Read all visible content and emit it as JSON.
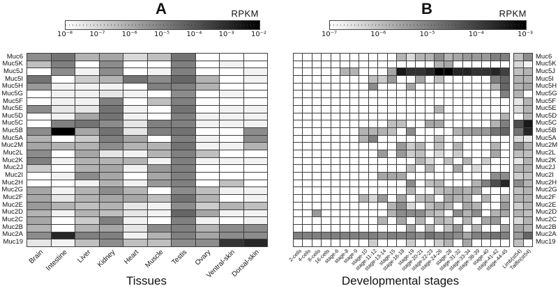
{
  "chart_data": [
    {
      "type": "heatmap",
      "title": "A",
      "unit": "RPKM",
      "xlabel": "Tissues",
      "colorbar_ticks": [
        "10⁻⁸",
        "10⁻⁷",
        "10⁻⁶",
        "10⁻⁵",
        "10⁻⁴",
        "10⁻³",
        "10⁻²"
      ],
      "scale_note": "grayscale darkness 0=white (≤10⁻⁸ RPKM) to 1=black (10⁻² RPKM), log scale",
      "rows": [
        "Muc6",
        "Muc5K",
        "Muc5J",
        "Muc5I",
        "Muc5H",
        "Muc5G",
        "Muc5F",
        "Muc5E",
        "Muc5D",
        "Muc5C",
        "Muc5B",
        "Muc5A",
        "Muc2M",
        "Muc2L",
        "Muc2K",
        "Muc2J",
        "Muc2I",
        "Muc2H",
        "Muc2G",
        "Muc2F",
        "Muc2E",
        "Muc2D",
        "Muc2C",
        "Muc2B",
        "Muc2A",
        "Muc19"
      ],
      "columns": [
        "Brain",
        "Intestine",
        "Liver",
        "Kidney",
        "Heart",
        "Muscle",
        "Testis",
        "Ovary",
        "Ventral-skin",
        "Dorsal-skin"
      ],
      "values": [
        [
          0.45,
          0.55,
          0.3,
          0.35,
          0.15,
          0.25,
          0.55,
          0.0,
          0.0,
          0.0
        ],
        [
          0.25,
          0.5,
          0.0,
          0.45,
          0.0,
          0.0,
          0.5,
          0.0,
          0.05,
          0.0
        ],
        [
          0.0,
          0.45,
          0.05,
          0.45,
          0.0,
          0.05,
          0.5,
          0.0,
          0.0,
          0.05
        ],
        [
          0.55,
          0.0,
          0.2,
          0.3,
          0.55,
          0.45,
          0.6,
          0.3,
          0.0,
          0.05
        ],
        [
          0.4,
          0.05,
          0.05,
          0.05,
          0.0,
          0.5,
          0.5,
          0.3,
          0.0,
          0.0
        ],
        [
          0.0,
          0.05,
          0.05,
          0.1,
          0.05,
          0.0,
          0.45,
          0.0,
          0.05,
          0.0
        ],
        [
          0.0,
          0.05,
          0.05,
          0.5,
          0.0,
          0.25,
          0.5,
          0.0,
          0.0,
          0.0
        ],
        [
          0.45,
          0.1,
          0.1,
          0.55,
          0.05,
          0.0,
          0.55,
          0.0,
          0.05,
          0.05
        ],
        [
          0.0,
          0.05,
          0.35,
          0.55,
          0.05,
          0.0,
          0.5,
          0.05,
          0.05,
          0.05
        ],
        [
          0.0,
          0.5,
          0.55,
          0.45,
          0.1,
          0.5,
          0.5,
          0.05,
          0.05,
          0.05
        ],
        [
          0.45,
          1.0,
          0.35,
          0.55,
          0.1,
          0.5,
          0.55,
          0.0,
          0.0,
          0.45
        ],
        [
          0.3,
          0.0,
          0.2,
          0.5,
          0.35,
          0.0,
          0.5,
          0.05,
          0.0,
          0.45
        ],
        [
          0.35,
          0.3,
          0.3,
          0.45,
          0.3,
          0.3,
          0.55,
          0.05,
          0.05,
          0.3
        ],
        [
          0.45,
          0.0,
          0.35,
          0.1,
          0.05,
          0.3,
          0.5,
          0.25,
          0.0,
          0.0
        ],
        [
          0.5,
          0.05,
          0.3,
          0.3,
          0.3,
          0.05,
          0.5,
          0.05,
          0.05,
          0.05
        ],
        [
          0.2,
          0.0,
          0.3,
          0.35,
          0.05,
          0.4,
          0.5,
          0.0,
          0.0,
          0.0
        ],
        [
          0.0,
          0.05,
          0.45,
          0.35,
          0.0,
          0.35,
          0.5,
          0.0,
          0.0,
          0.0
        ],
        [
          0.0,
          0.0,
          0.05,
          0.3,
          0.05,
          0.4,
          0.5,
          0.0,
          0.25,
          0.0
        ],
        [
          0.35,
          0.05,
          0.3,
          0.45,
          0.3,
          0.0,
          0.45,
          0.25,
          0.05,
          0.05
        ],
        [
          0.35,
          0.1,
          0.3,
          0.35,
          0.35,
          0.25,
          0.55,
          0.3,
          0.0,
          0.05
        ],
        [
          0.4,
          0.3,
          0.25,
          0.3,
          0.1,
          0.05,
          0.45,
          0.2,
          0.3,
          0.25
        ],
        [
          0.3,
          0.05,
          0.3,
          0.25,
          0.1,
          0.05,
          0.6,
          0.35,
          0.05,
          0.05
        ],
        [
          0.35,
          0.0,
          0.2,
          0.5,
          0.05,
          0.0,
          0.5,
          0.05,
          0.0,
          0.05
        ],
        [
          0.3,
          0.0,
          0.3,
          0.35,
          0.1,
          0.45,
          0.5,
          0.3,
          0.45,
          0.45
        ],
        [
          0.45,
          0.85,
          0.5,
          0.5,
          0.05,
          0.3,
          0.5,
          0.35,
          0.45,
          0.45
        ],
        [
          0.1,
          0.05,
          0.25,
          0.45,
          0.25,
          0.25,
          0.45,
          0.45,
          0.8,
          0.85
        ]
      ]
    },
    {
      "type": "heatmap",
      "title": "B",
      "unit": "RPKM",
      "xlabel": "Developmental stages",
      "colorbar_ticks": [
        "10⁻⁷",
        "10⁻⁶",
        "10⁻⁵",
        "10⁻⁴",
        "10⁻³"
      ],
      "scale_note": "grayscale darkness 0=white (≤10⁻⁷ RPKM) to 1=black (10⁻³ RPKM), log scale",
      "rows": [
        "Muc6",
        "Muc5K",
        "Muc5J",
        "Muc5I",
        "Muc5H",
        "Muc5G",
        "Muc5F",
        "Muc5E",
        "Muc5D",
        "Muc5C",
        "Muc5B",
        "Muc5A",
        "Muc2M",
        "Muc2L",
        "Muc2K",
        "Muc2J",
        "Muc2I",
        "Muc2H",
        "Muc2G",
        "Muc2F",
        "Muc2E",
        "Muc2D",
        "Muc2C",
        "Muc2B",
        "Muc2A",
        "Muc19"
      ],
      "columns": [
        "2-cells",
        "4-cells",
        "8-cells",
        "16-cells",
        "stage-6",
        "stage-8",
        "stage-9",
        "stage-10",
        "stage-11-12",
        "stage-13-14",
        "stage-15",
        "stage-16-18",
        "stage-19",
        "stage-20-21",
        "stage-22-23",
        "stage-24-26",
        "stage-28",
        "stage-31-32",
        "stage-33-34",
        "stage-38-39",
        "stage-40",
        "stage-41-42",
        "stage-44-45"
      ],
      "extra_columns": [
        "Limb(st54)",
        "Tailfin(st54)"
      ],
      "values": [
        [
          0,
          0,
          0,
          0,
          0,
          0,
          0,
          0,
          0,
          0,
          0,
          0.3,
          0.15,
          0.3,
          0.3,
          0.45,
          0.3,
          0.35,
          0.4,
          0.4,
          0.4,
          0.5,
          0.5
        ],
        [
          0,
          0,
          0,
          0,
          0,
          0,
          0,
          0,
          0,
          0,
          0,
          0,
          0,
          0,
          0,
          0.3,
          0.35,
          0,
          0,
          0,
          0,
          0,
          0
        ],
        [
          0,
          0,
          0,
          0,
          0,
          0.3,
          0.3,
          0,
          0,
          0,
          0.35,
          0.9,
          0.8,
          0.8,
          0.85,
          1.0,
          1.0,
          0.85,
          0.85,
          0.8,
          0.8,
          0.85,
          0.75
        ],
        [
          0,
          0,
          0,
          0,
          0,
          0,
          0,
          0,
          0.25,
          0.2,
          0.4,
          0,
          0,
          0.35,
          0,
          0.25,
          0,
          0,
          0,
          0,
          0,
          0.5,
          0.6
        ],
        [
          0,
          0,
          0,
          0,
          0,
          0,
          0,
          0,
          0.45,
          0,
          0,
          0,
          0.35,
          0,
          0,
          0,
          0,
          0,
          0,
          0,
          0,
          0.3,
          0.6
        ],
        [
          0,
          0,
          0,
          0,
          0,
          0,
          0,
          0,
          0,
          0,
          0,
          0,
          0,
          0,
          0,
          0,
          0,
          0,
          0,
          0,
          0,
          0,
          0.5
        ],
        [
          0,
          0,
          0,
          0,
          0,
          0,
          0,
          0,
          0,
          0,
          0,
          0,
          0,
          0,
          0,
          0,
          0,
          0,
          0,
          0,
          0,
          0,
          0
        ],
        [
          0,
          0,
          0,
          0,
          0,
          0,
          0,
          0,
          0,
          0,
          0,
          0,
          0,
          0,
          0,
          0.3,
          0,
          0,
          0,
          0,
          0,
          0,
          0
        ],
        [
          0,
          0,
          0,
          0,
          0,
          0,
          0,
          0,
          0,
          0,
          0,
          0,
          0,
          0,
          0,
          0,
          0,
          0,
          0,
          0,
          0,
          0,
          0.3
        ],
        [
          0,
          0,
          0,
          0,
          0,
          0,
          0,
          0,
          0,
          0,
          0.25,
          0.25,
          0,
          0,
          0.35,
          0.35,
          0,
          0,
          0,
          0,
          0,
          0.3,
          0.5
        ],
        [
          0,
          0,
          0,
          0,
          0,
          0,
          0,
          0.3,
          0.3,
          0.3,
          0.25,
          0,
          0.45,
          0,
          0,
          0,
          0,
          0.3,
          0.35,
          0.4,
          0.4,
          0.55,
          0.6
        ],
        [
          0,
          0,
          0,
          0,
          0,
          0,
          0,
          0.3,
          0.5,
          0,
          0,
          0,
          0,
          0,
          0,
          0.25,
          0,
          0,
          0,
          0,
          0,
          0,
          0
        ],
        [
          0,
          0,
          0,
          0,
          0,
          0,
          0,
          0,
          0,
          0,
          0,
          0.4,
          0.2,
          0.3,
          0,
          0.25,
          0,
          0.3,
          0,
          0,
          0,
          0.3,
          0
        ],
        [
          0,
          0,
          0,
          0,
          0,
          0,
          0,
          0,
          0,
          0.4,
          0,
          0.4,
          0.2,
          0.25,
          0,
          0.15,
          0,
          0.2,
          0,
          0,
          0,
          0.35,
          0
        ],
        [
          0,
          0,
          0,
          0,
          0,
          0,
          0,
          0,
          0,
          0,
          0,
          0,
          0,
          0.3,
          0.15,
          0,
          0.25,
          0,
          0.3,
          0,
          0.2,
          0,
          0
        ],
        [
          0,
          0,
          0,
          0,
          0,
          0,
          0,
          0,
          0,
          0,
          0,
          0,
          0.25,
          0,
          0.3,
          0,
          0,
          0.35,
          0,
          0.15,
          0,
          0,
          0
        ],
        [
          0,
          0,
          0,
          0,
          0,
          0,
          0,
          0,
          0,
          0.35,
          0.35,
          0.35,
          0,
          0,
          0,
          0,
          0,
          0,
          0,
          0,
          0,
          0.45,
          0.45
        ],
        [
          0,
          0,
          0,
          0,
          0,
          0,
          0,
          0,
          0,
          0,
          0,
          0,
          0.45,
          0,
          0.25,
          0.3,
          0,
          0,
          0,
          0.3,
          0.5,
          0.7,
          0.85
        ],
        [
          0,
          0,
          0,
          0,
          0,
          0,
          0,
          0,
          0,
          0,
          0,
          0,
          0.3,
          0,
          0,
          0.25,
          0.3,
          0.35,
          0.3,
          0.35,
          0,
          0,
          0
        ],
        [
          0,
          0,
          0,
          0,
          0,
          0,
          0,
          0.3,
          0.15,
          0.4,
          0,
          0.35,
          0,
          0.25,
          0.3,
          0,
          0.35,
          0.3,
          0.3,
          0,
          0.3,
          0,
          0.3
        ],
        [
          0,
          0,
          0,
          0,
          0,
          0,
          0,
          0,
          0,
          0,
          0.3,
          0.45,
          0.15,
          0,
          0.25,
          0.35,
          0.3,
          0,
          0.35,
          0.3,
          0,
          0,
          0.4
        ],
        [
          0,
          0,
          0.4,
          0,
          0,
          0,
          0,
          0,
          0,
          0,
          0.3,
          0.45,
          0.45,
          0.45,
          0.3,
          0.25,
          0,
          0.45,
          0.3,
          0.45,
          0,
          0.3,
          0.35
        ],
        [
          0,
          0,
          0,
          0,
          0,
          0,
          0,
          0,
          0,
          0.3,
          0,
          0.35,
          0,
          0.3,
          0,
          0.3,
          0.25,
          0,
          0.3,
          0,
          0.35,
          0.4,
          0
        ],
        [
          0,
          0,
          0,
          0,
          0,
          0,
          0,
          0,
          0,
          0,
          0,
          0,
          0.35,
          0,
          0.3,
          0,
          0.25,
          0.4,
          0,
          0.3,
          0,
          0,
          0.35
        ],
        [
          0.5,
          0.5,
          0.5,
          0.5,
          0.5,
          0.5,
          0.5,
          0.5,
          0.5,
          0.45,
          0.5,
          0.5,
          0.5,
          0.45,
          0.55,
          0.5,
          0.5,
          0.45,
          0.35,
          0.5,
          0.5,
          0.55,
          0.5
        ],
        [
          0,
          0,
          0,
          0,
          0,
          0,
          0,
          0,
          0.2,
          0,
          0,
          0,
          0.2,
          0,
          0,
          0.2,
          0.3,
          0,
          0.35,
          0,
          0,
          0,
          0
        ]
      ],
      "extra_values": [
        [
          0.25,
          0.45
        ],
        [
          0.15,
          0.05
        ],
        [
          0.25,
          0.3
        ],
        [
          0.3,
          0.3
        ],
        [
          0.3,
          0.35
        ],
        [
          0.3,
          0.0
        ],
        [
          0.1,
          0.3
        ],
        [
          0.15,
          0.3
        ],
        [
          0.0,
          0.3
        ],
        [
          0.7,
          0.9
        ],
        [
          0.55,
          0.85
        ],
        [
          0.15,
          0.1
        ],
        [
          0.45,
          0.3
        ],
        [
          0.25,
          0.25
        ],
        [
          0.1,
          0.3
        ],
        [
          0.3,
          0.3
        ],
        [
          0.2,
          0.25
        ],
        [
          0.45,
          0.3
        ],
        [
          0.25,
          0.3
        ],
        [
          0.3,
          0.3
        ],
        [
          0.2,
          0.3
        ],
        [
          0.3,
          0.25
        ],
        [
          0.15,
          0.3
        ],
        [
          0.35,
          0.3
        ],
        [
          0.4,
          0.6
        ],
        [
          0.25,
          0.0
        ]
      ]
    }
  ],
  "colors": {
    "heat_low": "#ffffff",
    "heat_high": "#000000",
    "gridline": "#3c3c3c",
    "text": "#111111"
  }
}
